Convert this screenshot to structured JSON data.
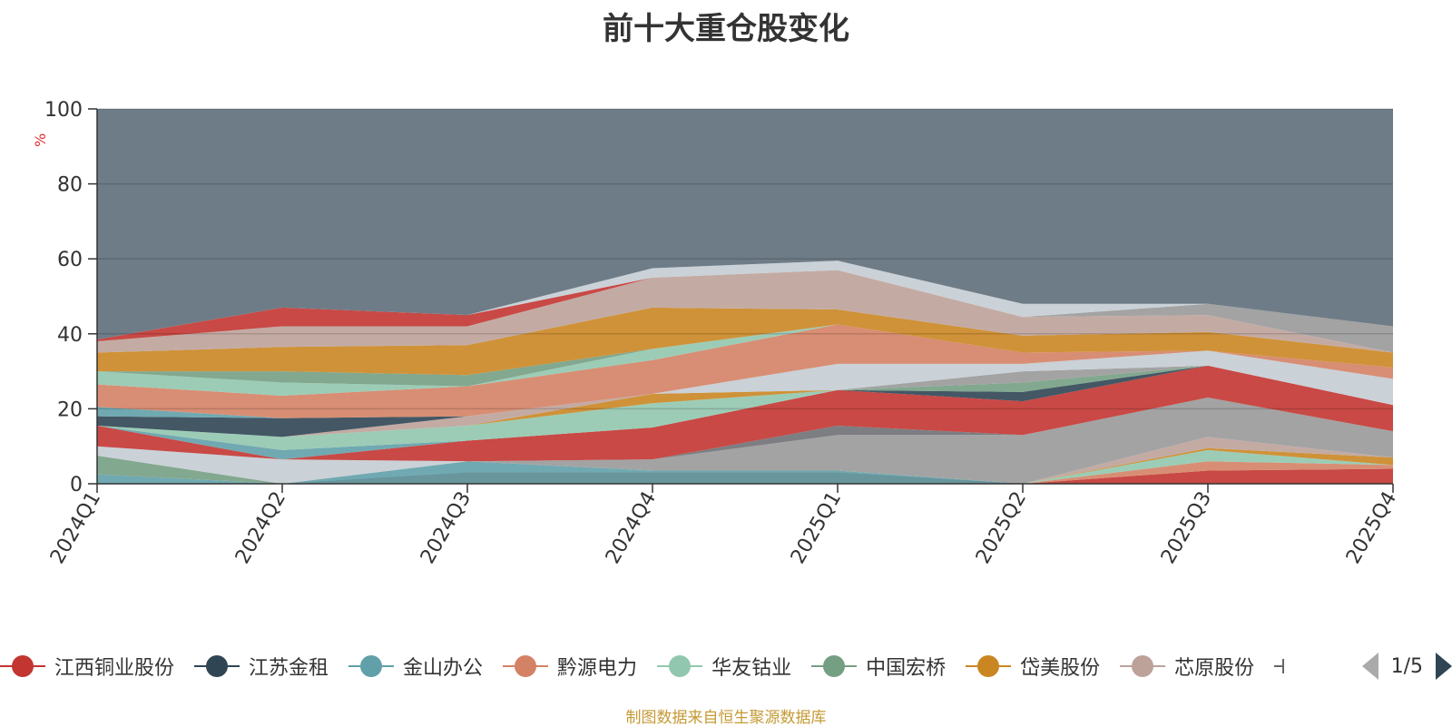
{
  "chart_data": {
    "type": "area",
    "title": "前十大重仓股变化",
    "ylabel": "%",
    "ylim": [
      0,
      100
    ],
    "y_ticks": [
      "0",
      "20",
      "40",
      "60",
      "80",
      "100"
    ],
    "categories": [
      "2024Q1",
      "2024Q2",
      "2024Q3",
      "2024Q4",
      "2025Q1",
      "2025Q2",
      "2025Q3",
      "2025Q4"
    ],
    "legend_position": "bottom",
    "legend_page": "1/5",
    "grid": true,
    "footnote": "制图数据来自恒生聚源数据库",
    "legend": [
      {
        "name": "江西铜业股份",
        "color": "#c23531"
      },
      {
        "name": "江苏金租",
        "color": "#2f4554"
      },
      {
        "name": "金山办公",
        "color": "#61a0a8"
      },
      {
        "name": "黔源电力",
        "color": "#d48265"
      },
      {
        "name": "华友钴业",
        "color": "#91c7ae"
      },
      {
        "name": "中国宏桥",
        "color": "#749f83"
      },
      {
        "name": "岱美股份",
        "color": "#ca8622"
      },
      {
        "name": "芯原股份",
        "color": "#bda29a"
      }
    ],
    "layers": [
      {
        "color": "#61a0a8",
        "values": [
          0,
          0,
          0,
          0,
          0,
          0,
          0,
          0
        ]
      },
      {
        "color": "#c23531",
        "values": [
          0,
          0,
          0,
          0,
          0,
          0,
          0,
          0
        ]
      },
      {
        "color": "#2f4554",
        "values": [
          0,
          0,
          3,
          3,
          3,
          0,
          0,
          0
        ]
      },
      {
        "color": "#c23531",
        "values": [
          0,
          0,
          0,
          0,
          0,
          0,
          3.5,
          4
        ]
      },
      {
        "color": "#d48265",
        "values": [
          0,
          0,
          0,
          0,
          0,
          0,
          6,
          5
        ]
      },
      {
        "color": "#91c7ae",
        "values": [
          0,
          0,
          0,
          0,
          0,
          0,
          9,
          5
        ]
      },
      {
        "color": "#ca8622",
        "values": [
          0,
          0,
          0,
          0,
          0,
          0,
          9.5,
          7
        ]
      },
      {
        "color": "#bda29a",
        "values": [
          0,
          0,
          0,
          0,
          0,
          0,
          12.5,
          7
        ]
      },
      {
        "color": "#61a0a8",
        "values": [
          2.5,
          0,
          6,
          3.5,
          3.5,
          0,
          12.5,
          7
        ]
      },
      {
        "color": "#749f83",
        "values": [
          7.5,
          0,
          6,
          3.5,
          3.5,
          0,
          12.5,
          7
        ]
      },
      {
        "color": "#c4ccd3",
        "values": [
          10,
          6.5,
          6,
          3.5,
          3.5,
          0,
          12.5,
          7
        ]
      },
      {
        "color": "#999999",
        "values": [
          10,
          6.5,
          6,
          6.5,
          13,
          13,
          23,
          14
        ]
      },
      {
        "color": "#6e7074",
        "values": [
          10,
          6.5,
          6,
          6.5,
          15.5,
          13,
          23,
          14
        ]
      },
      {
        "color": "#c23531",
        "values": [
          15.5,
          6.5,
          11.5,
          15,
          25,
          22,
          31.5,
          21
        ]
      },
      {
        "color": "#61a0a8",
        "values": [
          15.5,
          9,
          11.5,
          15,
          25,
          22,
          31.5,
          21
        ]
      },
      {
        "color": "#91c7ae",
        "values": [
          15.5,
          12.5,
          15.5,
          21.5,
          25,
          22,
          31.5,
          21
        ]
      },
      {
        "color": "#2f4554",
        "values": [
          15.5,
          12.5,
          15.5,
          21.5,
          25,
          24.5,
          31.5,
          21
        ]
      },
      {
        "color": "#749f83",
        "values": [
          15.5,
          12.5,
          15.5,
          21.5,
          25,
          27,
          31.5,
          21
        ]
      },
      {
        "color": "#ca8622",
        "values": [
          15.5,
          12.5,
          15.5,
          24,
          25,
          27,
          31.5,
          21
        ]
      },
      {
        "color": "#999999",
        "values": [
          15.5,
          12.5,
          15.5,
          24,
          25,
          30,
          31.5,
          21
        ]
      },
      {
        "color": "#bda29a",
        "values": [
          15.5,
          12.5,
          18,
          24,
          25,
          30,
          31.5,
          21
        ]
      },
      {
        "color": "#2f4554",
        "values": [
          18,
          17.5,
          18,
          24,
          25,
          30,
          31.5,
          21
        ]
      },
      {
        "color": "#c4ccd3",
        "values": [
          18,
          17.5,
          18,
          24,
          32,
          32,
          35.5,
          28
        ]
      },
      {
        "color": "#61a0a8",
        "values": [
          20.5,
          17.5,
          18,
          24,
          32,
          32,
          35.5,
          28
        ]
      },
      {
        "color": "#d48265",
        "values": [
          26.5,
          23.5,
          26,
          33,
          42.5,
          35,
          35.5,
          31
        ]
      },
      {
        "color": "#91c7ae",
        "values": [
          30,
          27,
          26,
          36,
          42.5,
          35,
          35.5,
          31
        ]
      },
      {
        "color": "#749f83",
        "values": [
          30,
          30,
          29,
          36,
          42.5,
          35,
          35.5,
          31
        ]
      },
      {
        "color": "#ca8622",
        "values": [
          35,
          36.5,
          37,
          47,
          46.5,
          39.5,
          40.5,
          35
        ]
      },
      {
        "color": "#bda29a",
        "values": [
          38,
          42,
          42,
          55,
          57,
          44.5,
          45,
          35
        ]
      },
      {
        "color": "#c23531",
        "values": [
          38.5,
          47,
          45,
          55,
          57,
          44.5,
          45,
          35
        ]
      },
      {
        "color": "#999999",
        "values": [
          38.5,
          47,
          45,
          55,
          57,
          44.5,
          48,
          42
        ]
      },
      {
        "color": "#c4ccd3",
        "values": [
          38.5,
          47,
          45,
          57.5,
          59.5,
          48,
          48,
          42
        ]
      },
      {
        "color": "#6e7c87",
        "values": [
          100,
          100,
          100,
          100,
          100,
          100,
          100,
          100
        ]
      }
    ]
  }
}
